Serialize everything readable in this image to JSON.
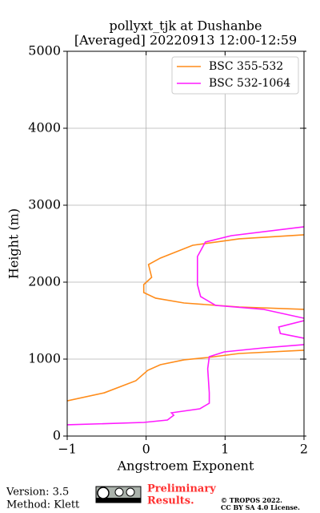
{
  "chart_data": {
    "type": "line",
    "title": [
      "pollyxt_tjk at Dushanbe",
      "[Averaged] 20220913 12:00-12:59"
    ],
    "x_label": "Angstroem Exponent",
    "y_label": "Height (m)",
    "xlim": [
      -1,
      2
    ],
    "xticks": [
      {
        "value": -1,
        "label": "−1"
      },
      0,
      1,
      2
    ],
    "ylim": [
      0,
      5000
    ],
    "yticks": [
      0,
      1000,
      2000,
      3000,
      4000,
      5000
    ],
    "grid": true,
    "legend": "upper right",
    "series": [
      {
        "name": "BSC 355-532",
        "color": "#ff8c1a",
        "x": [
          -1,
          -0.53,
          -0.13,
          0.02,
          0.18,
          0.48,
          0.78,
          1.18,
          2.0,
          null,
          2.0,
          1.18,
          0.48,
          0.12,
          -0.03,
          -0.03,
          0.07,
          0.03,
          0.18,
          0.59,
          1.18,
          2.0
        ],
        "y": [
          458,
          562,
          719,
          854,
          927,
          990,
          1021,
          1073,
          1115,
          null,
          1646,
          1677,
          1729,
          1792,
          1865,
          1969,
          2063,
          2229,
          2313,
          2479,
          2563,
          2615
        ]
      },
      {
        "name": "BSC 532-1064",
        "color": "#ff1aff",
        "x": [
          -1,
          -0.03,
          0.27,
          0.35,
          0.32,
          0.68,
          0.8,
          0.8,
          0.78,
          0.8,
          0.99,
          1.49,
          2.0,
          null,
          2.0,
          1.7,
          1.68,
          2.0,
          null,
          2.0,
          1.49,
          0.88,
          0.69,
          0.65,
          0.65,
          0.75,
          1.08,
          2.0
        ],
        "y": [
          146,
          177,
          208,
          271,
          302,
          354,
          427,
          562,
          875,
          1031,
          1094,
          1146,
          1188,
          null,
          1271,
          1333,
          1417,
          1500,
          null,
          1531,
          1646,
          1698,
          1813,
          1969,
          2333,
          2521,
          2604,
          2719
        ]
      }
    ]
  },
  "footer": {
    "version": "Version: 3.5",
    "method": "Method: Klett",
    "preliminary": "Preliminary",
    "results": "Results.",
    "copyright": "© TROPOS 2022.",
    "license": "CC BY SA 4.0 License."
  }
}
